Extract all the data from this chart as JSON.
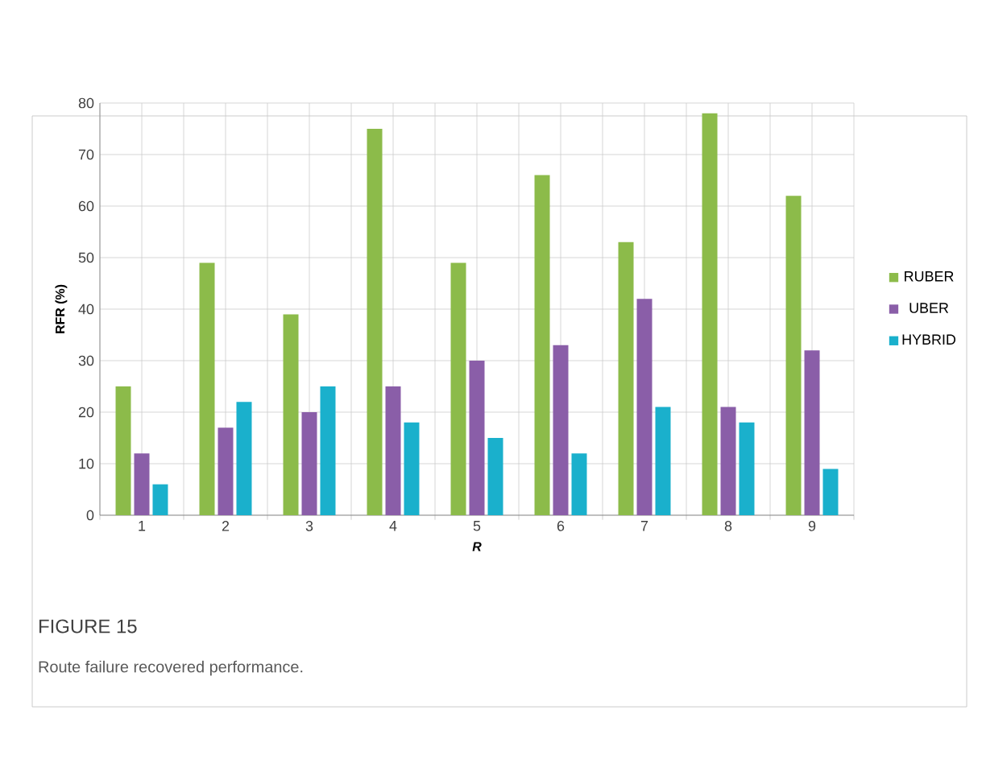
{
  "chart_data": {
    "type": "bar",
    "xlabel": "R",
    "ylabel": "RFR (%)",
    "categories": [
      "1",
      "2",
      "3",
      "4",
      "5",
      "6",
      "7",
      "8",
      "9"
    ],
    "series": [
      {
        "name": "RUBER",
        "color": "#8cbb4a",
        "values": [
          25,
          49,
          39,
          75,
          49,
          66,
          53,
          78,
          62
        ]
      },
      {
        "name": "UBER",
        "color": "#8a5ea8",
        "values": [
          12,
          17,
          20,
          25,
          30,
          33,
          42,
          21,
          32
        ]
      },
      {
        "name": "HYBRID",
        "color": "#1ab0cc",
        "values": [
          6,
          22,
          25,
          18,
          15,
          12,
          21,
          18,
          9
        ]
      }
    ],
    "ylim": [
      0,
      80
    ],
    "yticks": [
      0,
      10,
      20,
      30,
      40,
      50,
      60,
      70,
      80
    ],
    "grid": true,
    "legend": "right",
    "annotations": [
      "FIGURE 15",
      "Route failure recovered performance."
    ]
  }
}
